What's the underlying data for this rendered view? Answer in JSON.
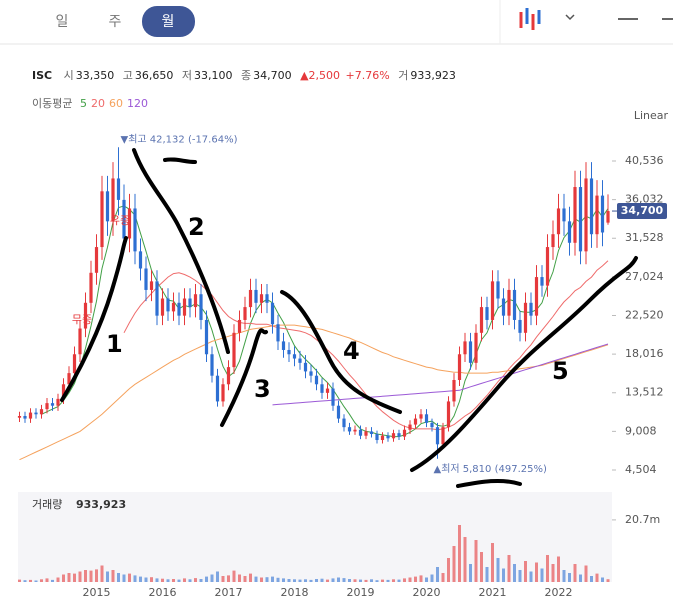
{
  "tabs": [
    "일",
    "주",
    "월"
  ],
  "selected_tab": 2,
  "quote": {
    "symbol": "ISC",
    "items": [
      {
        "label": "시",
        "value": "33,350"
      },
      {
        "label": "고",
        "value": "36,650"
      },
      {
        "label": "저",
        "value": "33,100"
      },
      {
        "label": "종",
        "value": "34,700"
      }
    ],
    "change": "▲2,500",
    "change_pct": "+7.76%",
    "volume_label": "거",
    "volume": "933,923"
  },
  "ma_label": "이동평균",
  "scale_label": "Linear",
  "event_labels": [
    "무증",
    "유증"
  ],
  "handwritten_labels": [
    "1",
    "2",
    "3",
    "4",
    "5"
  ],
  "chart_data": {
    "type": "candlestick",
    "categories": [
      null,
      null,
      null,
      null,
      null,
      null,
      null,
      null,
      null,
      null,
      null,
      null,
      null,
      null,
      "2015",
      null,
      null,
      null,
      null,
      null,
      null,
      null,
      null,
      null,
      null,
      null,
      "2016",
      null,
      null,
      null,
      null,
      null,
      null,
      null,
      null,
      null,
      null,
      null,
      "2017",
      null,
      null,
      null,
      null,
      null,
      null,
      null,
      null,
      null,
      null,
      null,
      "2018",
      null,
      null,
      null,
      null,
      null,
      null,
      null,
      null,
      null,
      null,
      null,
      "2019",
      null,
      null,
      null,
      null,
      null,
      null,
      null,
      null,
      null,
      null,
      null,
      "2020",
      null,
      null,
      null,
      null,
      null,
      null,
      null,
      null,
      null,
      null,
      null,
      "2021",
      null,
      null,
      null,
      null,
      null,
      null,
      null,
      null,
      null,
      null,
      null,
      "2022",
      null,
      null,
      null,
      null,
      null,
      null,
      null,
      null,
      null
    ],
    "open": [
      10600,
      10800,
      10500,
      11200,
      11000,
      11600,
      12300,
      12000,
      12800,
      14500,
      15800,
      18000,
      21000,
      24000,
      27500,
      30500,
      37000,
      33500,
      38500,
      36000,
      31500,
      35000,
      30000,
      28000,
      25500,
      26500,
      22500,
      24500,
      23000,
      24000,
      22500,
      24500,
      23500,
      25000,
      22000,
      18000,
      15500,
      12500,
      14500,
      16500,
      20500,
      22000,
      23500,
      25500,
      24000,
      25000,
      24000,
      21500,
      19500,
      18500,
      18000,
      17500,
      17000,
      16000,
      15500,
      14500,
      13500,
      14000,
      12000,
      10500,
      9500,
      9000,
      9200,
      8500,
      9000,
      8700,
      8000,
      8500,
      8200,
      8800,
      8400,
      9200,
      9800,
      10500,
      11000,
      10000,
      9500,
      7500,
      9500,
      12500,
      15000,
      18000,
      19500,
      17000,
      20500,
      23500,
      22000,
      26500,
      24500,
      22500,
      25500,
      22000,
      20500,
      24000,
      22500,
      27000,
      26000,
      30500,
      32000,
      35000,
      33500,
      31000,
      37500,
      30000,
      38500,
      32000,
      36500,
      33350
    ],
    "high": [
      11300,
      11300,
      11700,
      11700,
      12100,
      12900,
      12900,
      13400,
      15200,
      16600,
      18900,
      22000,
      25200,
      28900,
      32000,
      38800,
      38800,
      40400,
      42132,
      37800,
      36700,
      36700,
      31500,
      29400,
      27800,
      27800,
      25700,
      25700,
      25200,
      25200,
      25700,
      25700,
      26200,
      26200,
      23100,
      18900,
      16300,
      15200,
      17300,
      21500,
      23100,
      24700,
      26800,
      26800,
      26200,
      26200,
      25200,
      22600,
      20500,
      19400,
      18900,
      18400,
      17900,
      16800,
      16300,
      15200,
      14700,
      14700,
      12600,
      11000,
      10000,
      9700,
      9700,
      9500,
      9500,
      9100,
      8900,
      8900,
      9200,
      9200,
      9700,
      10300,
      11000,
      11600,
      11600,
      10500,
      10000,
      10000,
      13100,
      15800,
      18900,
      20500,
      20500,
      21500,
      24700,
      24700,
      27800,
      27800,
      25700,
      26800,
      26800,
      23100,
      25200,
      25200,
      28400,
      28400,
      32000,
      33600,
      36700,
      36700,
      35200,
      39400,
      39400,
      40400,
      40400,
      38300,
      38300,
      36650
    ],
    "low": [
      10100,
      10000,
      10000,
      10500,
      10500,
      11100,
      11400,
      11400,
      12200,
      13800,
      15000,
      17100,
      20000,
      22800,
      26100,
      29000,
      31800,
      31800,
      34200,
      29900,
      29900,
      28500,
      26600,
      24200,
      24200,
      21400,
      21400,
      21900,
      21900,
      21400,
      21400,
      22300,
      22300,
      20900,
      17100,
      14700,
      11900,
      11900,
      13800,
      15700,
      19500,
      20900,
      22300,
      22800,
      22800,
      22800,
      20400,
      18500,
      17600,
      17100,
      16600,
      16200,
      15200,
      14700,
      13800,
      12800,
      12800,
      11400,
      10000,
      9000,
      8600,
      8600,
      8100,
      8100,
      8300,
      7600,
      7600,
      7800,
      7800,
      8000,
      8000,
      8700,
      9300,
      10000,
      9500,
      9000,
      5810,
      7100,
      9000,
      11900,
      14300,
      17100,
      16200,
      16200,
      19500,
      20900,
      20900,
      23300,
      21400,
      21400,
      20900,
      19500,
      19500,
      21400,
      21400,
      24700,
      24700,
      29000,
      30400,
      31800,
      29500,
      29500,
      28500,
      28500,
      30400,
      30400,
      30600,
      33100
    ],
    "close": [
      10800,
      10500,
      11200,
      11000,
      11600,
      12300,
      12000,
      12800,
      14500,
      15800,
      18000,
      21000,
      24000,
      27500,
      30500,
      37000,
      33500,
      38500,
      36000,
      31500,
      35000,
      30000,
      28000,
      25500,
      26500,
      22500,
      24500,
      23000,
      24000,
      22500,
      24500,
      23500,
      25000,
      22000,
      18000,
      15500,
      12500,
      14500,
      16500,
      20500,
      22000,
      23500,
      25500,
      24000,
      25000,
      24000,
      21500,
      19500,
      18500,
      18000,
      17500,
      17000,
      16000,
      15500,
      14500,
      13500,
      14000,
      12000,
      10500,
      9500,
      9000,
      9200,
      8500,
      9000,
      8700,
      8000,
      8500,
      8200,
      8800,
      8400,
      9200,
      9800,
      10500,
      11000,
      10000,
      9500,
      7500,
      9500,
      12500,
      15000,
      18000,
      19500,
      17000,
      20500,
      23500,
      22000,
      26500,
      24500,
      22500,
      25500,
      22000,
      20500,
      24000,
      22500,
      27000,
      26000,
      30500,
      32000,
      35000,
      33500,
      31000,
      37500,
      30000,
      38500,
      32000,
      36500,
      32200,
      34700
    ],
    "up_color": "#e5383b",
    "down_color": "#2d6fd2",
    "ma_series": [
      {
        "name": "5",
        "color": "#43a047",
        "values": [
          null,
          null,
          null,
          null,
          11000,
          11300,
          11600,
          11900,
          12600,
          13500,
          14600,
          16400,
          18700,
          21300,
          24200,
          28000,
          30500,
          33400,
          35100,
          35300,
          34900,
          34200,
          32100,
          30000,
          27800,
          26500,
          25400,
          24300,
          24200,
          23300,
          23700,
          23500,
          23900,
          23500,
          22600,
          20800,
          18600,
          16600,
          15400,
          15900,
          17200,
          19400,
          21600,
          23100,
          24000,
          24400,
          24000,
          22800,
          21700,
          20300,
          19000,
          18100,
          17400,
          16800,
          16100,
          15300,
          14700,
          13900,
          12900,
          11900,
          11000,
          10000,
          9300,
          9000,
          8900,
          8700,
          8600,
          8500,
          8400,
          8400,
          8600,
          8900,
          9300,
          9900,
          10100,
          10200,
          9700,
          9600,
          9800,
          10800,
          12500,
          14900,
          16400,
          18000,
          19700,
          20500,
          22100,
          23400,
          23800,
          24400,
          24200,
          23000,
          22900,
          22900,
          23200,
          24000,
          26000,
          27600,
          30100,
          31600,
          32400,
          33800,
          33400,
          34100,
          33800,
          34900,
          34000,
          35000
        ]
      },
      {
        "name": "20",
        "color": "#ef6b6b",
        "values": [
          null,
          null,
          null,
          null,
          null,
          null,
          null,
          null,
          null,
          null,
          null,
          null,
          null,
          null,
          null,
          null,
          null,
          null,
          null,
          20500,
          21700,
          22800,
          23700,
          24400,
          25100,
          25800,
          26400,
          27000,
          27400,
          27500,
          27300,
          27000,
          26600,
          26100,
          25500,
          24900,
          24000,
          23100,
          22400,
          22000,
          21700,
          21600,
          21600,
          21500,
          21500,
          21500,
          21300,
          21100,
          21000,
          20900,
          20800,
          20700,
          20500,
          20200,
          19700,
          19200,
          18500,
          17900,
          17200,
          16400,
          15600,
          14900,
          14100,
          13300,
          12600,
          11900,
          11300,
          10800,
          10300,
          9900,
          9600,
          9400,
          9300,
          9300,
          9300,
          9300,
          9200,
          9300,
          9500,
          9800,
          10300,
          10800,
          11200,
          11800,
          12500,
          13200,
          14000,
          14800,
          15500,
          16300,
          17000,
          17600,
          18400,
          19100,
          20000,
          20800,
          21600,
          22400,
          23300,
          24100,
          24700,
          25400,
          25800,
          26500,
          27000,
          27800,
          28300,
          28900
        ]
      },
      {
        "name": "60",
        "color": "#f5a25d",
        "values": [
          5700,
          6000,
          6300,
          6600,
          6900,
          7200,
          7500,
          7800,
          8100,
          8400,
          8700,
          9000,
          9500,
          10000,
          10500,
          11000,
          11600,
          12200,
          12800,
          13400,
          14000,
          14500,
          14900,
          15300,
          15700,
          16100,
          16500,
          16900,
          17300,
          17600,
          18000,
          18300,
          18600,
          18900,
          19200,
          19500,
          19700,
          19900,
          20100,
          20300,
          20500,
          20700,
          20900,
          21000,
          21100,
          21200,
          21300,
          21400,
          21400,
          21400,
          21400,
          21300,
          21200,
          21100,
          21000,
          20900,
          20700,
          20500,
          20300,
          20100,
          19900,
          19600,
          19400,
          19100,
          18800,
          18500,
          18200,
          18000,
          17700,
          17500,
          17300,
          17100,
          16900,
          16700,
          16500,
          16400,
          16200,
          16100,
          16000,
          15900,
          15900,
          15800,
          15800,
          15800,
          15800,
          15800,
          15900,
          15900,
          16000,
          16100,
          16200,
          16300,
          16400,
          16500,
          16600,
          16700,
          16900,
          17100,
          17300,
          17500,
          17700,
          17900,
          18100,
          18300,
          18500,
          18700,
          18900,
          19100
        ]
      },
      {
        "name": "120",
        "color": "#9b59d6",
        "values": [
          null,
          null,
          null,
          null,
          null,
          null,
          null,
          null,
          null,
          null,
          null,
          null,
          null,
          null,
          null,
          null,
          null,
          null,
          null,
          null,
          null,
          null,
          null,
          null,
          null,
          null,
          null,
          null,
          null,
          null,
          null,
          null,
          null,
          null,
          null,
          null,
          null,
          null,
          null,
          null,
          null,
          null,
          null,
          null,
          null,
          null,
          12100,
          12150,
          12200,
          12250,
          12300,
          12350,
          12400,
          12450,
          12500,
          12550,
          12600,
          12650,
          12700,
          12750,
          12800,
          12850,
          12900,
          12950,
          13000,
          13050,
          13100,
          13150,
          13200,
          13250,
          13300,
          13350,
          13400,
          13450,
          13500,
          13550,
          13600,
          13650,
          13700,
          13750,
          13800,
          14000,
          14200,
          14400,
          14600,
          14800,
          15000,
          15200,
          15400,
          15600,
          15800,
          16000,
          16200,
          16400,
          16600,
          16800,
          17000,
          17200,
          17400,
          17600,
          17800,
          18000,
          18200,
          18400,
          18600,
          18800,
          19000,
          19200
        ]
      }
    ],
    "ylim": [
      2755,
      44733
    ],
    "yticks": [
      {
        "value": 4504,
        "label": "4,504"
      },
      {
        "value": 9008,
        "label": "9,008"
      },
      {
        "value": 13512,
        "label": "13,512"
      },
      {
        "value": 18016,
        "label": "18,016"
      },
      {
        "value": 22520,
        "label": "22,520"
      },
      {
        "value": 27024,
        "label": "27,024"
      },
      {
        "value": 31528,
        "label": "31,528"
      },
      {
        "value": 36032,
        "label": "36,032"
      },
      {
        "value": 40536,
        "label": "40,536"
      }
    ],
    "last_price": {
      "value": 34700,
      "label": "34,700"
    },
    "max_annotation": "▼최고 42,132 (-17.64%)",
    "min_annotation": "▲최저 5,810 (497.25%)",
    "volume": {
      "label": "거래량",
      "last_label": "933,923",
      "ylim": [
        0,
        30000000
      ],
      "yticks": [
        {
          "value": 20700000,
          "label": "20.7m"
        }
      ],
      "values": [
        800000,
        600000,
        700000,
        500000,
        900000,
        1200000,
        700000,
        1500000,
        2500000,
        3000000,
        2800000,
        3500000,
        4000000,
        3800000,
        4200000,
        5500000,
        3500000,
        4000000,
        3000000,
        2500000,
        2800000,
        2200000,
        1800000,
        1500000,
        1600000,
        1200000,
        1100000,
        900000,
        1000000,
        800000,
        1200000,
        900000,
        1300000,
        1000000,
        1800000,
        2500000,
        3500000,
        2000000,
        2200000,
        3800000,
        2500000,
        2000000,
        2800000,
        1800000,
        1500000,
        1600000,
        1800000,
        1400000,
        1200000,
        1000000,
        900000,
        800000,
        900000,
        700000,
        1000000,
        1100000,
        800000,
        1200000,
        1500000,
        1300000,
        1000000,
        900000,
        800000,
        700000,
        900000,
        600000,
        800000,
        700000,
        900000,
        800000,
        1200000,
        1500000,
        1800000,
        2200000,
        1500000,
        2500000,
        5000000,
        3000000,
        8000000,
        12000000,
        19000000,
        15000000,
        6000000,
        14000000,
        10000000,
        5000000,
        13000000,
        8000000,
        4500000,
        9000000,
        6000000,
        4000000,
        7000000,
        3500000,
        6500000,
        4500000,
        9000000,
        6000000,
        8500000,
        4000000,
        3000000,
        6000000,
        2500000,
        5500000,
        2000000,
        2800000,
        1500000,
        933923
      ]
    }
  }
}
